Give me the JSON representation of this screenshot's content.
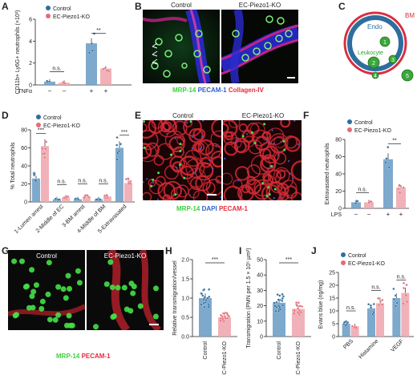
{
  "colors": {
    "control": "#2E6E9E",
    "ko": "#E56A77",
    "control_light": "#6FA0C8",
    "ko_light": "#F0A8B0"
  },
  "panels": {
    "A": {
      "letter": "A"
    },
    "B": {
      "letter": "B"
    },
    "C": {
      "letter": "C"
    },
    "D": {
      "letter": "D"
    },
    "E": {
      "letter": "E"
    },
    "F": {
      "letter": "F"
    },
    "G": {
      "letter": "G"
    },
    "H": {
      "letter": "H"
    },
    "I": {
      "letter": "I"
    },
    "J": {
      "letter": "J"
    }
  },
  "legend": {
    "control": "Control",
    "ko": "EC-Piezo1-KO"
  },
  "micro_labels": {
    "control": "Control",
    "ko": "EC-Piezo1-KO"
  },
  "stains": {
    "B": {
      "c1": "MRP-14",
      "c2": "PECAM-1",
      "c3": "Collagen-IV"
    },
    "E": {
      "c1": "MRP-14",
      "c2": "DAPI",
      "c3": "PECAM-1"
    },
    "G": {
      "c1": "MRP-14",
      "c2": "PECAM-1"
    }
  },
  "schematic": {
    "bm": "BM",
    "endo": "Endo",
    "leukocyte": "Leukocyte",
    "steps": [
      "1",
      "2",
      "3",
      "4",
      "5"
    ]
  },
  "chart_data": [
    {
      "panel": "A",
      "type": "bar",
      "ylabel": "CD11b+ Ly6G+ neutrophils (×10³)",
      "yticks": [
        0,
        2,
        4,
        6
      ],
      "ylim": [
        0,
        6
      ],
      "factor_label": "TNFα",
      "factor_values": [
        "−",
        "−",
        "+",
        "+"
      ],
      "series": [
        {
          "name": "Control",
          "values": [
            0.3,
            3.8
          ]
        },
        {
          "name": "EC-Piezo1-KO",
          "values": [
            0.2,
            1.5
          ]
        }
      ],
      "significance": [
        "n.s.",
        "**"
      ]
    },
    {
      "panel": "D",
      "type": "bar",
      "ylabel": "% Total neutrophils",
      "yticks": [
        0,
        20,
        40,
        60,
        80
      ],
      "ylim": [
        0,
        80
      ],
      "categories": [
        "1-Lumen arrest",
        "2-Middle of EC",
        "3-BM arrest",
        "4-Middle of BM",
        "5-Extravasated"
      ],
      "series": [
        {
          "name": "Control",
          "values": [
            26,
            3,
            3,
            3,
            60
          ]
        },
        {
          "name": "EC-Piezo1-KO",
          "values": [
            62,
            5,
            6,
            6,
            21
          ]
        }
      ],
      "significance": [
        "***",
        "n.s.",
        "n.s.",
        "n.s.",
        "***"
      ]
    },
    {
      "panel": "F",
      "type": "bar",
      "ylabel": "Extravasated neutrophils",
      "yticks": [
        0,
        20,
        40,
        60,
        80
      ],
      "ylim": [
        0,
        80
      ],
      "factor_label": "LPS",
      "factor_values": [
        "−",
        "−",
        "+",
        "+"
      ],
      "series": [
        {
          "name": "Control",
          "values": [
            7,
            57
          ]
        },
        {
          "name": "EC-Piezo1-KO",
          "values": [
            7,
            24
          ]
        }
      ],
      "significance": [
        "n.s.",
        "**"
      ]
    },
    {
      "panel": "H",
      "type": "bar",
      "ylabel": "Relative transmigration/vessel",
      "yticks": [
        "0.0",
        "0.5",
        "1.0",
        "1.5",
        "2.0"
      ],
      "ylim": [
        0,
        2
      ],
      "categories": [
        "Control",
        "EC-Piezo1-KO"
      ],
      "values": [
        1.0,
        0.5
      ],
      "significance": "***"
    },
    {
      "panel": "I",
      "type": "bar",
      "ylabel": "Transmigration (PMN per 1.5 × 10⁵ µm²)",
      "yticks": [
        0,
        10,
        20,
        30,
        40,
        50
      ],
      "ylim": [
        0,
        50
      ],
      "categories": [
        "Control",
        "EC-Piezo1-KO"
      ],
      "values": [
        22,
        18
      ],
      "significance": "***"
    },
    {
      "panel": "J",
      "type": "bar",
      "ylabel": "Evans blue (ng/mg)",
      "yticks": [
        0,
        5,
        10,
        15,
        20,
        25
      ],
      "ylim": [
        0,
        25
      ],
      "categories": [
        "PBS",
        "Histamine",
        "VEGF"
      ],
      "series": [
        {
          "name": "Control",
          "values": [
            5,
            11,
            15
          ]
        },
        {
          "name": "EC-Piezo1-KO",
          "values": [
            4,
            13,
            17
          ]
        }
      ],
      "significance": [
        "n.s.",
        "n.s.",
        "n.s."
      ]
    }
  ]
}
